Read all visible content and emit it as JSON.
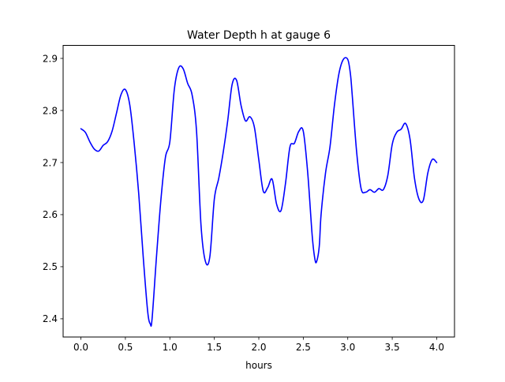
{
  "chart_data": {
    "type": "line",
    "title": "Water Depth h at gauge 6",
    "xlabel": "hours",
    "ylabel": "",
    "xlim": [
      -0.2,
      4.2
    ],
    "ylim": [
      2.365,
      2.925
    ],
    "xticks": [
      0.0,
      0.5,
      1.0,
      1.5,
      2.0,
      2.5,
      3.0,
      3.5,
      4.0
    ],
    "xtick_labels": [
      "0.0",
      "0.5",
      "1.0",
      "1.5",
      "2.0",
      "2.5",
      "3.0",
      "3.5",
      "4.0"
    ],
    "yticks": [
      2.4,
      2.5,
      2.6,
      2.7,
      2.8,
      2.9
    ],
    "ytick_labels": [
      "2.4",
      "2.5",
      "2.6",
      "2.7",
      "2.8",
      "2.9"
    ],
    "grid": false,
    "legend": "none",
    "series": [
      {
        "color": "#0000ff",
        "x": [
          0.0,
          0.05,
          0.1,
          0.15,
          0.2,
          0.25,
          0.3,
          0.35,
          0.4,
          0.45,
          0.5,
          0.55,
          0.6,
          0.65,
          0.7,
          0.75,
          0.78,
          0.8,
          0.85,
          0.9,
          0.95,
          1.0,
          1.05,
          1.1,
          1.15,
          1.2,
          1.25,
          1.3,
          1.35,
          1.4,
          1.45,
          1.5,
          1.55,
          1.6,
          1.65,
          1.7,
          1.75,
          1.8,
          1.85,
          1.9,
          1.95,
          2.0,
          2.05,
          2.1,
          2.15,
          2.2,
          2.25,
          2.3,
          2.35,
          2.4,
          2.45,
          2.5,
          2.55,
          2.6,
          2.63,
          2.65,
          2.68,
          2.7,
          2.75,
          2.8,
          2.85,
          2.9,
          2.95,
          3.0,
          3.03,
          3.05,
          3.1,
          3.15,
          3.2,
          3.25,
          3.3,
          3.35,
          3.4,
          3.45,
          3.5,
          3.55,
          3.6,
          3.65,
          3.7,
          3.75,
          3.8,
          3.85,
          3.9,
          3.95,
          4.0
        ],
        "y": [
          2.765,
          2.758,
          2.74,
          2.726,
          2.722,
          2.733,
          2.74,
          2.76,
          2.795,
          2.83,
          2.84,
          2.81,
          2.735,
          2.64,
          2.52,
          2.415,
          2.39,
          2.4,
          2.52,
          2.63,
          2.71,
          2.74,
          2.84,
          2.882,
          2.88,
          2.852,
          2.83,
          2.76,
          2.58,
          2.51,
          2.52,
          2.63,
          2.67,
          2.72,
          2.78,
          2.85,
          2.858,
          2.81,
          2.78,
          2.788,
          2.768,
          2.705,
          2.645,
          2.652,
          2.668,
          2.62,
          2.608,
          2.66,
          2.73,
          2.737,
          2.76,
          2.76,
          2.68,
          2.56,
          2.515,
          2.51,
          2.54,
          2.6,
          2.68,
          2.73,
          2.81,
          2.87,
          2.898,
          2.898,
          2.87,
          2.83,
          2.72,
          2.65,
          2.643,
          2.648,
          2.643,
          2.65,
          2.648,
          2.675,
          2.735,
          2.758,
          2.764,
          2.775,
          2.745,
          2.67,
          2.63,
          2.628,
          2.68,
          2.706,
          2.7
        ]
      }
    ]
  }
}
